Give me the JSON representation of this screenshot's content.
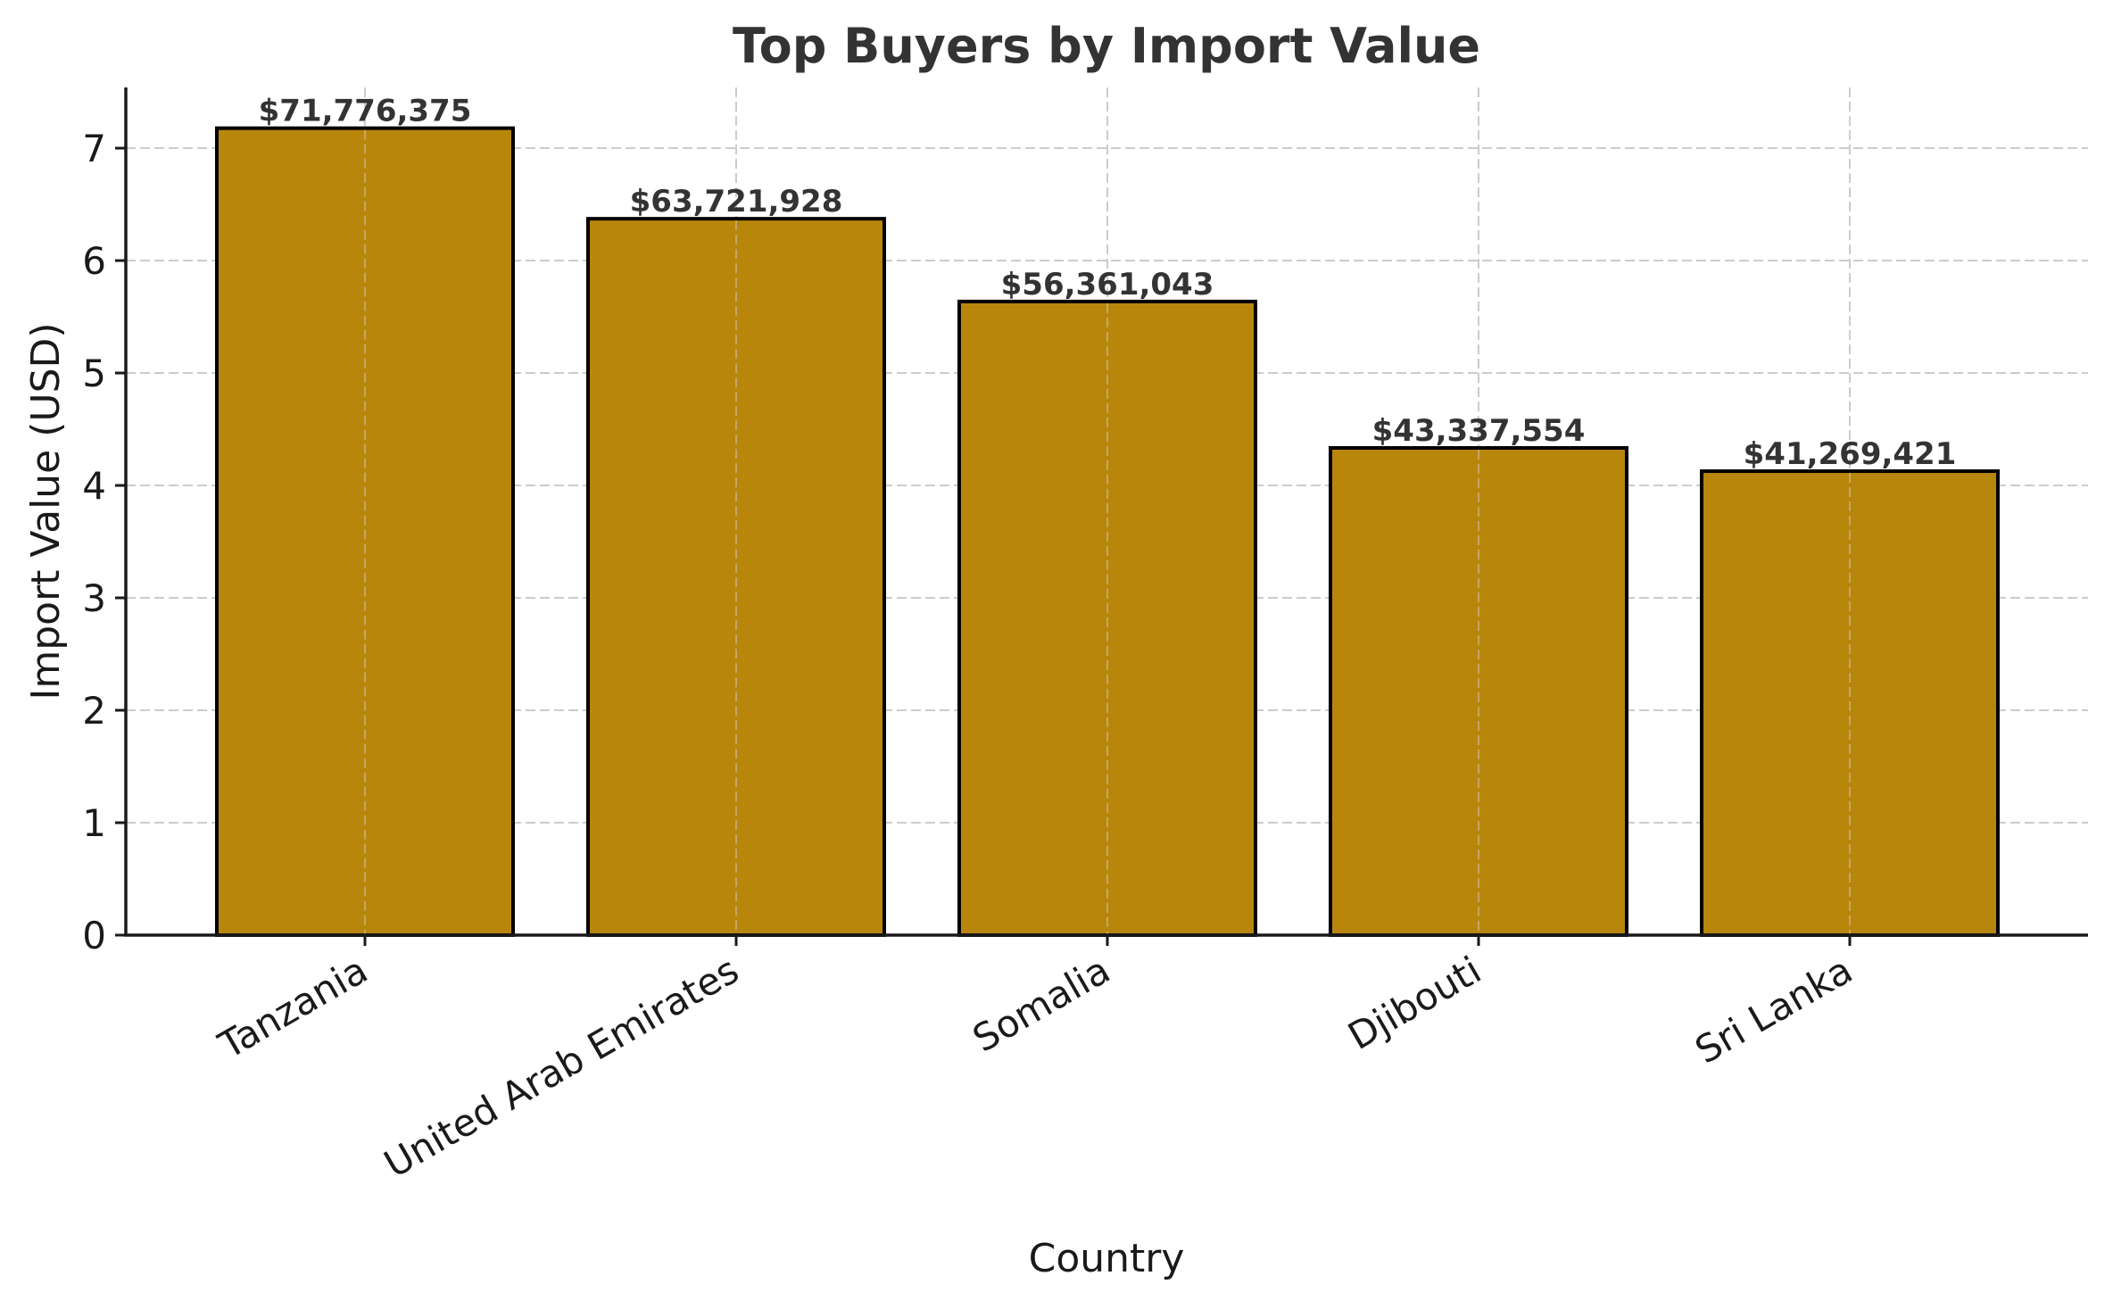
{
  "chart_data": {
    "type": "bar",
    "title": "Top Buyers by Import Value",
    "xlabel": "Country",
    "ylabel": "Import Value (USD)",
    "categories": [
      "Tanzania",
      "United Arab Emirates",
      "Somalia",
      "Djibouti",
      "Sri Lanka"
    ],
    "values": [
      71776375,
      63721928,
      56361043,
      43337554,
      41269421
    ],
    "value_labels": [
      "$71,776,375",
      "$63,721,928",
      "$56,361,043",
      "$43,337,554",
      "$41,269,421"
    ],
    "y_scale_divisor": 10000000,
    "yticks": [
      0,
      1,
      2,
      3,
      4,
      5,
      6,
      7
    ],
    "ylim": [
      0,
      7.54
    ],
    "grid": true,
    "grid_style": "dashed",
    "legend": null,
    "xtick_rotation": -30,
    "colors": {
      "bar_fill": "#B8860B",
      "bar_edge": "#000000",
      "grid": "#cccccc",
      "title_text": "#333333",
      "value_text": "#333333",
      "axis": "#1a1a1a"
    }
  }
}
